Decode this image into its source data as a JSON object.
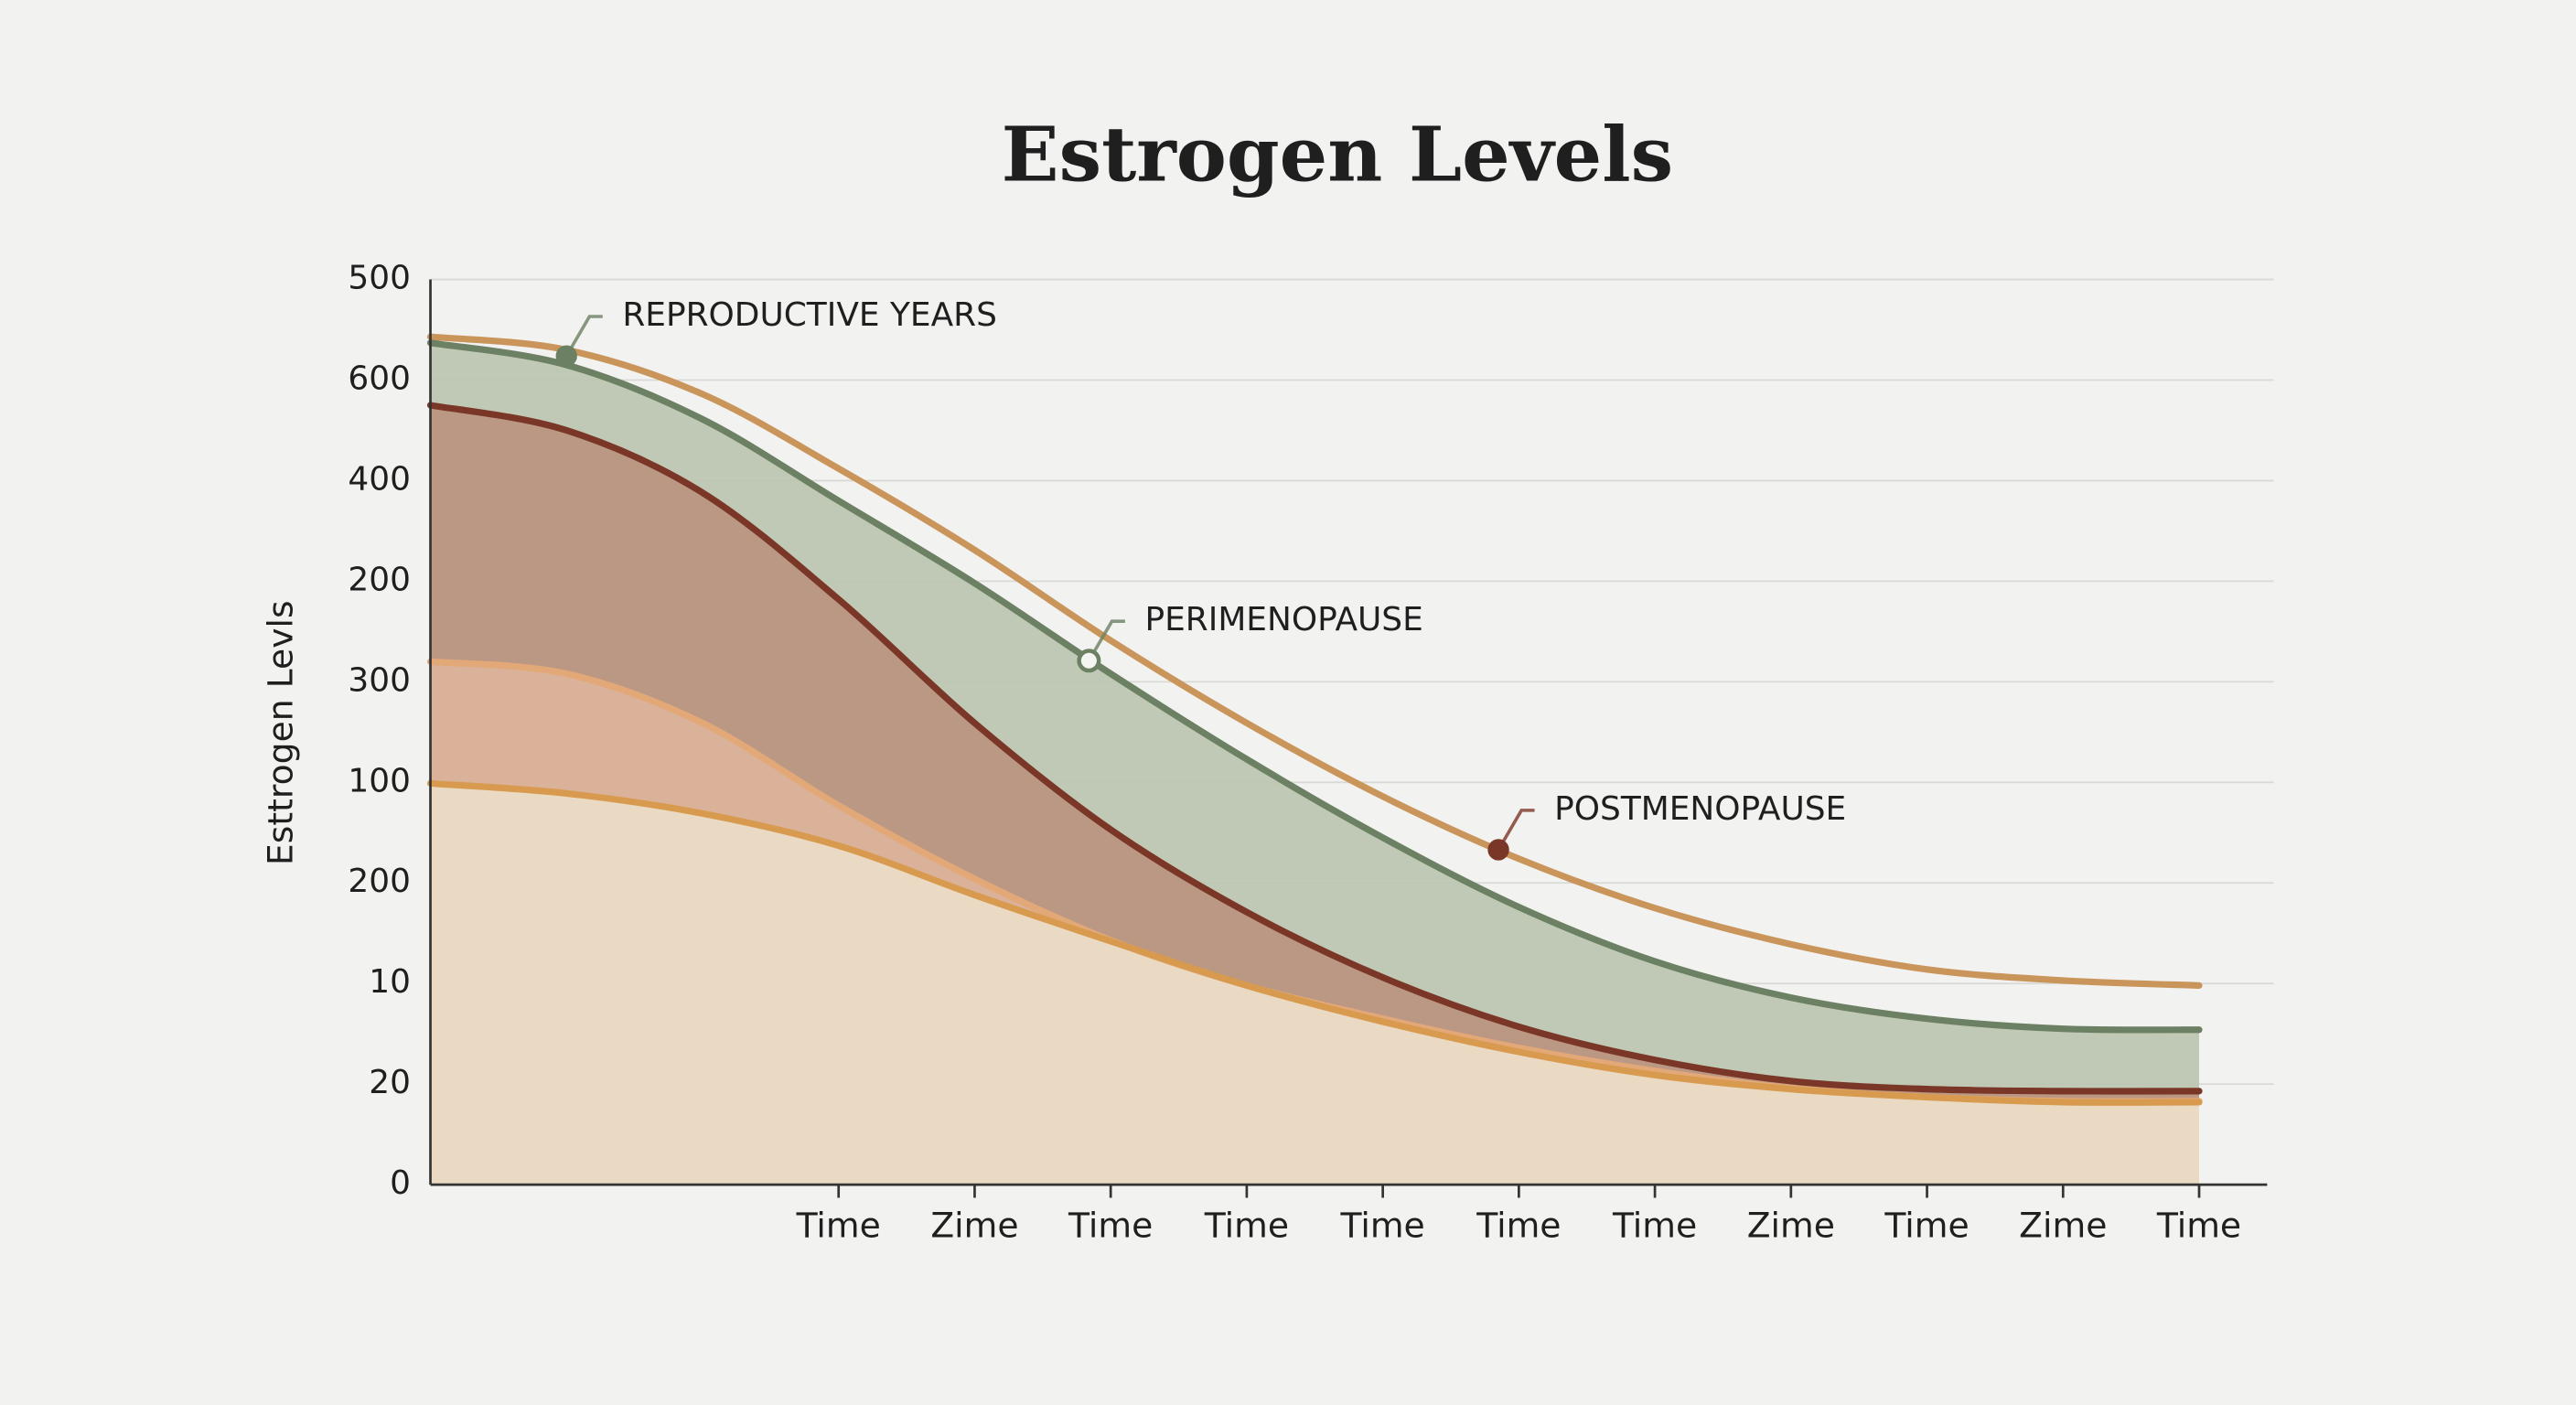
{
  "chart_data": {
    "type": "line",
    "title": "Estrogen Levels",
    "y_label": "Esttrogen Levls",
    "x": [
      0,
      1,
      2,
      3,
      4,
      5,
      6,
      7,
      8,
      9,
      10,
      11,
      12,
      13
    ],
    "xlim": [
      0,
      13.5
    ],
    "xticks": [
      {
        "value": 3,
        "label": "Time"
      },
      {
        "value": 4,
        "label": "Zime"
      },
      {
        "value": 5,
        "label": "Time"
      },
      {
        "value": 6,
        "label": "Time"
      },
      {
        "value": 7,
        "label": "Time"
      },
      {
        "value": 8,
        "label": "Time"
      },
      {
        "value": 9,
        "label": "Time"
      },
      {
        "value": 10,
        "label": "Zime"
      },
      {
        "value": 11,
        "label": "Time"
      },
      {
        "value": 12,
        "label": "Zime"
      },
      {
        "value": 13,
        "label": "Time"
      }
    ],
    "ylim": [
      0,
      9
    ],
    "yticks": [
      0,
      {
        "value": 1,
        "label": "20"
      },
      {
        "value": 2,
        "label": "10"
      },
      {
        "value": 3,
        "label": "200"
      },
      {
        "value": 4,
        "label": "100"
      },
      {
        "value": 5,
        "label": "300"
      },
      {
        "value": 6,
        "label": "200"
      },
      {
        "value": 7,
        "label": "400"
      },
      {
        "value": 8,
        "label": "600"
      },
      {
        "value": 9,
        "label": "500"
      }
    ],
    "grid": true,
    "series": [
      {
        "color": "#c9955b",
        "values": [
          8.43,
          8.3,
          7.86,
          7.12,
          6.31,
          5.41,
          4.59,
          3.86,
          3.24,
          2.75,
          2.39,
          2.14,
          2.03,
          1.98
        ]
      },
      {
        "color": "#6c8063",
        "fill": "#bcc5b0",
        "values": [
          8.37,
          8.15,
          7.61,
          6.8,
          5.98,
          5.08,
          4.23,
          3.45,
          2.76,
          2.22,
          1.86,
          1.65,
          1.55,
          1.54
        ]
      },
      {
        "color": "#7a3626",
        "fill": "#bb9480",
        "values": [
          7.75,
          7.5,
          6.88,
          5.82,
          4.59,
          3.53,
          2.71,
          2.06,
          1.57,
          1.24,
          1.03,
          0.95,
          0.93,
          0.93
        ]
      },
      {
        "color": "#e3a878",
        "fill": "#dcb49b",
        "values": [
          5.2,
          5.08,
          4.59,
          3.77,
          3.04,
          2.43,
          1.98,
          1.65,
          1.36,
          1.13,
          0.96,
          0.87,
          0.83,
          0.83
        ]
      },
      {
        "color": "#d89a4e",
        "fill": "#ecdcc7",
        "values": [
          3.99,
          3.89,
          3.69,
          3.37,
          2.88,
          2.42,
          1.98,
          1.62,
          1.32,
          1.09,
          0.95,
          0.87,
          0.82,
          0.82
        ]
      }
    ],
    "annotations": [
      {
        "text": "REPRODUCTIVE YEARS",
        "x": 1.0,
        "y": 8.24,
        "color": "#6c8063"
      },
      {
        "text": "PERIMENOPAUSE",
        "x": 4.84,
        "y": 5.21,
        "color": "#6c8063",
        "hollow": true
      },
      {
        "text": "POSTMENOPAUSE",
        "x": 7.85,
        "y": 3.33,
        "color": "#7a3626"
      }
    ]
  }
}
